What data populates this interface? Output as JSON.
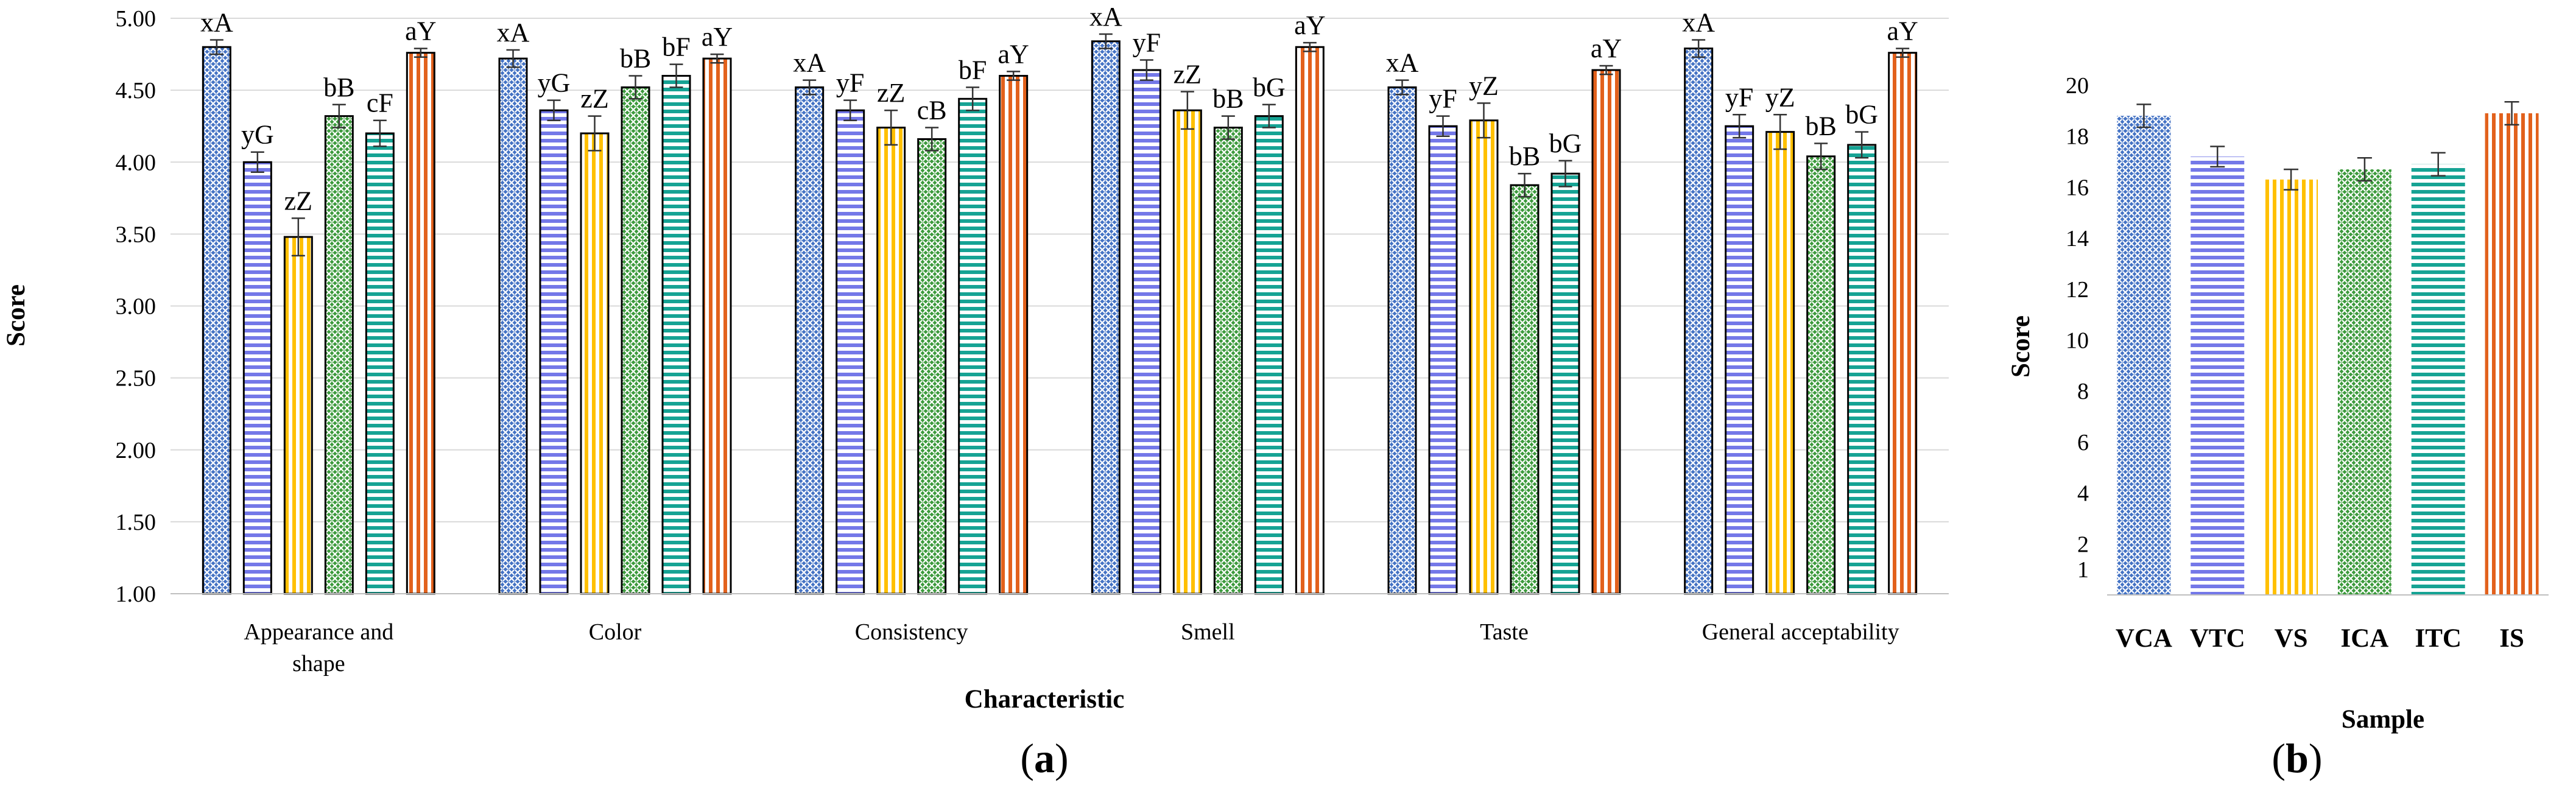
{
  "colors": {
    "VCA": "#4472c4",
    "VTC": "#7478e8",
    "VS": "#ffc000",
    "ICA": "#3c9a3c",
    "ITC": "#16a394",
    "IS": "#e2611c",
    "grid": "#d9d9d9",
    "error": "#333333"
  },
  "patterns": {
    "VCA": "crosshatch",
    "VTC": "horizontal-lines",
    "VS": "vertical-lines",
    "ICA": "crosshatch",
    "ITC": "horizontal-lines",
    "IS": "vertical-lines"
  },
  "panel_labels": {
    "a": {
      "open": "(",
      "letter": "a",
      "close": ")"
    },
    "b": {
      "open": "(",
      "letter": "b",
      "close": ")"
    }
  },
  "chart_data": [
    {
      "type": "bar",
      "panel": "a",
      "xlabel": "Characteristic",
      "ylabel": "Score",
      "ylim": [
        1.0,
        5.0
      ],
      "yticks": [
        "1.00",
        "1.50",
        "2.00",
        "2.50",
        "3.00",
        "3.50",
        "4.00",
        "4.50",
        "5.00"
      ],
      "ytick_values": [
        1.0,
        1.5,
        2.0,
        2.5,
        3.0,
        3.5,
        4.0,
        4.5,
        5.0
      ],
      "grid": true,
      "categories": [
        "Appearance and shape",
        "Color",
        "Consistency",
        "Smell",
        "Taste",
        "General acceptability"
      ],
      "category_lines": [
        [
          "Appearance and",
          "shape"
        ],
        [
          "Color"
        ],
        [
          "Consistency"
        ],
        [
          "Smell"
        ],
        [
          "Taste"
        ],
        [
          "General acceptability"
        ]
      ],
      "series": [
        {
          "key": "VCA",
          "values": [
            4.8,
            4.72,
            4.52,
            4.84,
            4.52,
            4.79
          ],
          "errors": [
            0.05,
            0.06,
            0.05,
            0.05,
            0.05,
            0.06
          ],
          "labels": [
            "xA",
            "xA",
            "xA",
            "xA",
            "xA",
            "xA"
          ]
        },
        {
          "key": "VTC",
          "values": [
            4.0,
            4.36,
            4.36,
            4.64,
            4.25,
            4.25
          ],
          "errors": [
            0.07,
            0.07,
            0.07,
            0.07,
            0.07,
            0.08
          ],
          "labels": [
            "yG",
            "yG",
            "yF",
            "yF",
            "yF",
            "yF"
          ]
        },
        {
          "key": "VS",
          "values": [
            3.48,
            4.2,
            4.24,
            4.36,
            4.29,
            4.21
          ],
          "errors": [
            0.13,
            0.12,
            0.12,
            0.13,
            0.12,
            0.12
          ],
          "labels": [
            "zZ",
            "zZ",
            "zZ",
            "zZ",
            "yZ",
            "yZ"
          ]
        },
        {
          "key": "ICA",
          "values": [
            4.32,
            4.52,
            4.16,
            4.24,
            3.84,
            4.04
          ],
          "errors": [
            0.08,
            0.08,
            0.08,
            0.08,
            0.08,
            0.09
          ],
          "labels": [
            "bB",
            "bB",
            "cB",
            "bB",
            "bB",
            "bB"
          ]
        },
        {
          "key": "ITC",
          "values": [
            4.2,
            4.6,
            4.44,
            4.32,
            3.92,
            4.12
          ],
          "errors": [
            0.09,
            0.08,
            0.08,
            0.08,
            0.09,
            0.09
          ],
          "labels": [
            "cF",
            "bF",
            "bF",
            "bG",
            "bG",
            "bG"
          ]
        },
        {
          "key": "IS",
          "values": [
            4.76,
            4.72,
            4.6,
            4.8,
            4.64,
            4.76
          ],
          "errors": [
            0.03,
            0.03,
            0.03,
            0.03,
            0.03,
            0.03
          ],
          "labels": [
            "aY",
            "aY",
            "aY",
            "aY",
            "aY",
            "aY"
          ]
        }
      ]
    },
    {
      "type": "bar",
      "panel": "b",
      "xlabel": "Sample",
      "ylabel": "Score",
      "ylim": [
        0,
        20
      ],
      "yticks": [
        "1",
        "2",
        "4",
        "6",
        "8",
        "10",
        "12",
        "14",
        "16",
        "18",
        "20"
      ],
      "ytick_values": [
        1,
        2,
        4,
        6,
        8,
        10,
        12,
        14,
        16,
        18,
        20
      ],
      "grid": false,
      "categories": [
        "VCA",
        "VTC",
        "VS",
        "ICA",
        "ITC",
        "IS"
      ],
      "values": [
        18.8,
        17.2,
        16.3,
        16.7,
        16.9,
        18.9
      ],
      "errors": [
        0.45,
        0.4,
        0.4,
        0.45,
        0.45,
        0.45
      ]
    }
  ]
}
